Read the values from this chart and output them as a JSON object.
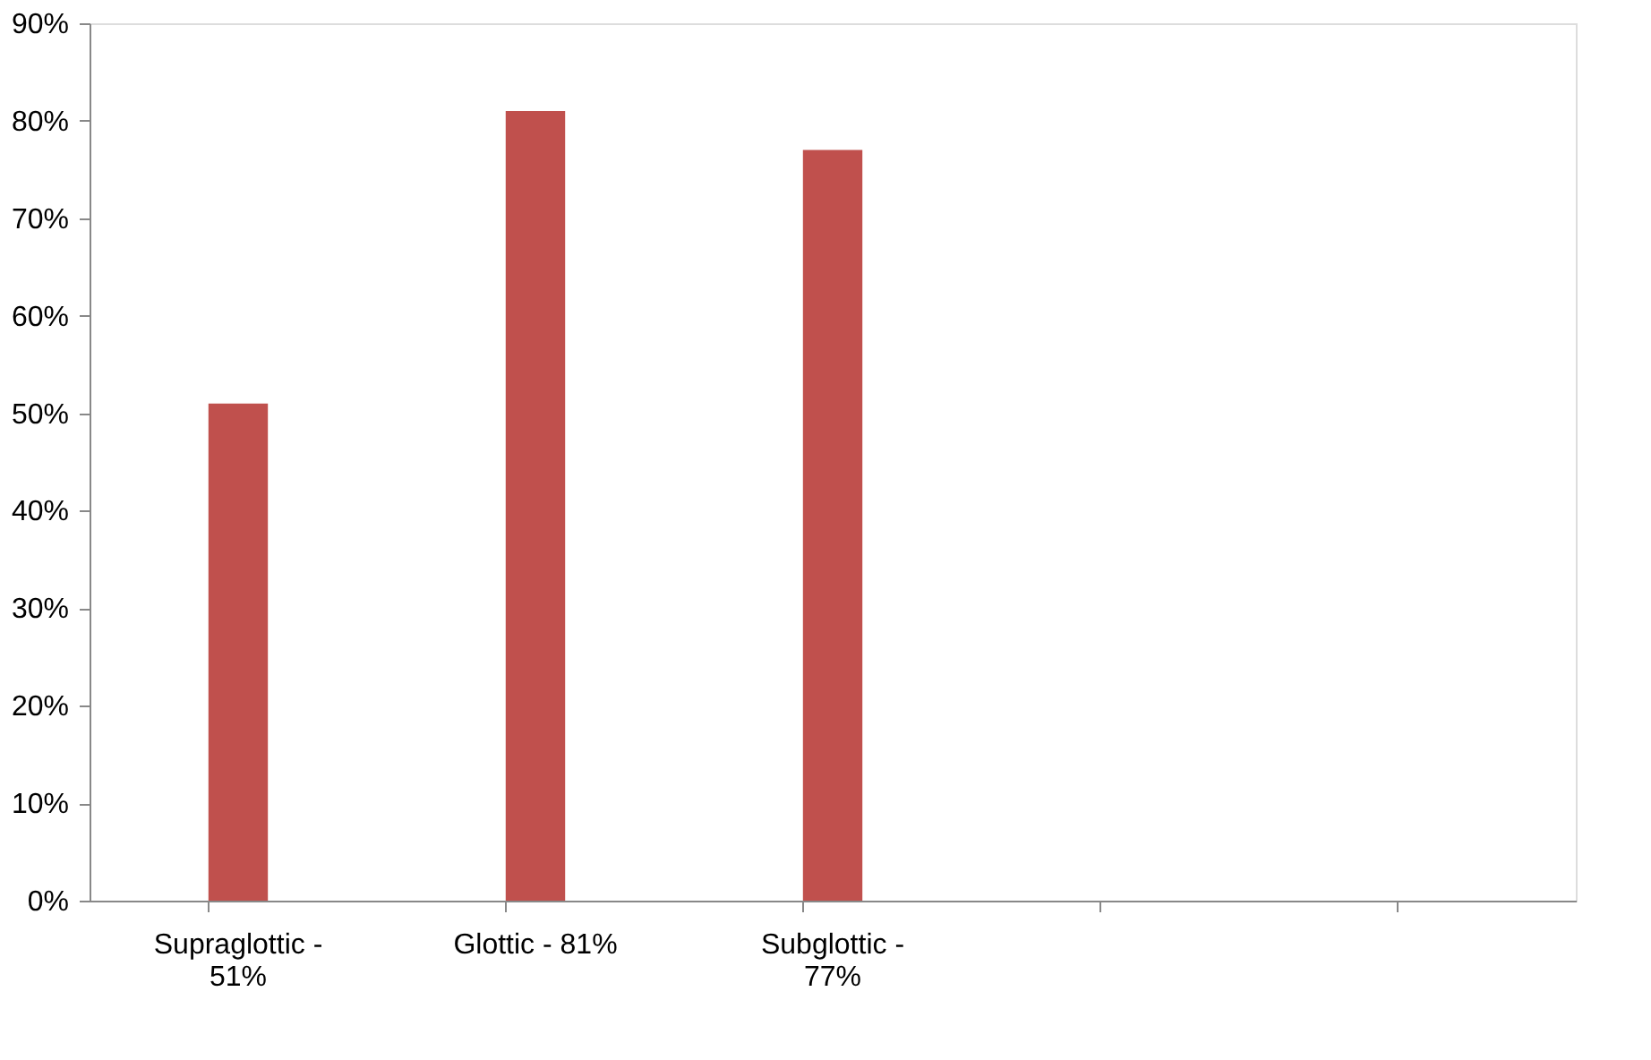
{
  "chart_data": {
    "type": "bar",
    "categories": [
      "Supraglottic - 51%",
      "Glottic - 81%",
      "Subglottic - 77%",
      null,
      null
    ],
    "values": [
      51,
      81,
      77,
      null,
      null
    ],
    "color": "#c0504d",
    "ylim": [
      0,
      90
    ],
    "yticks": [
      {
        "value": 0,
        "label": "0%"
      },
      {
        "value": 10,
        "label": "10%"
      },
      {
        "value": 20,
        "label": "20%"
      },
      {
        "value": 30,
        "label": "30%"
      },
      {
        "value": 40,
        "label": "40%"
      },
      {
        "value": 50,
        "label": "50%"
      },
      {
        "value": 60,
        "label": "60%"
      },
      {
        "value": 70,
        "label": "70%"
      },
      {
        "value": 80,
        "label": "80%"
      },
      {
        "value": 90,
        "label": "90%"
      }
    ],
    "grid": false
  }
}
